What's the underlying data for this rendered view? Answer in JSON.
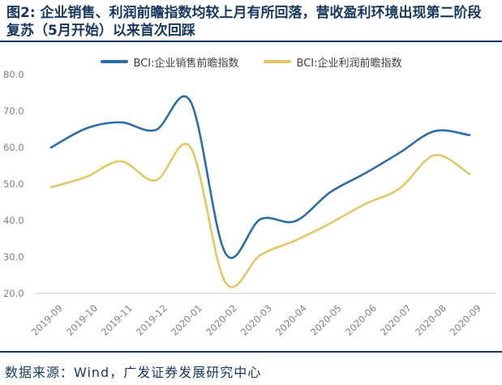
{
  "title": "图2: 企业销售、利润前瞻指数均较上月有所回落，营收盈利环境出现第二阶段复苏（5月开始）以来首次回踩",
  "footer": {
    "source_text": "数据来源：Wind，广发证券发展研究中心"
  },
  "colors": {
    "title_navy": "#17375e",
    "sales_line": "#2a6da8",
    "profit_line": "#e2c765",
    "tick_grey": "#808080",
    "axis_line_grey": "#c9c9c9"
  },
  "chart_data": {
    "type": "line",
    "smooth": true,
    "grid": false,
    "legend_position": "top",
    "categories": [
      "2019-09",
      "2019-10",
      "2019-11",
      "2019-12",
      "2020-01",
      "2020-02",
      "2020-03",
      "2020-04",
      "2020-05",
      "2020-06",
      "2020-07",
      "2020-08",
      "2020-09"
    ],
    "series": [
      {
        "name": "BCI:企业销售前瞻指数",
        "color": "#2a6da8",
        "values": [
          60.0,
          65.2,
          66.9,
          64.8,
          72.6,
          31.0,
          40.3,
          39.8,
          47.7,
          52.9,
          58.6,
          64.5,
          63.4
        ]
      },
      {
        "name": "BCI:企业利润前瞻指数",
        "color": "#e2c765",
        "values": [
          49.1,
          51.9,
          56.2,
          51.0,
          60.0,
          23.0,
          30.5,
          34.5,
          39.2,
          44.5,
          48.8,
          57.9,
          52.7
        ]
      }
    ],
    "ylim": [
      20,
      80
    ],
    "yticks": [
      80,
      70,
      60,
      50,
      40,
      30,
      20
    ],
    "ytick_labels": [
      "80.0",
      "70.0",
      "60.0",
      "50.0",
      "40.0",
      "30.0",
      "20.0"
    ],
    "xlabel": "",
    "ylabel": ""
  }
}
